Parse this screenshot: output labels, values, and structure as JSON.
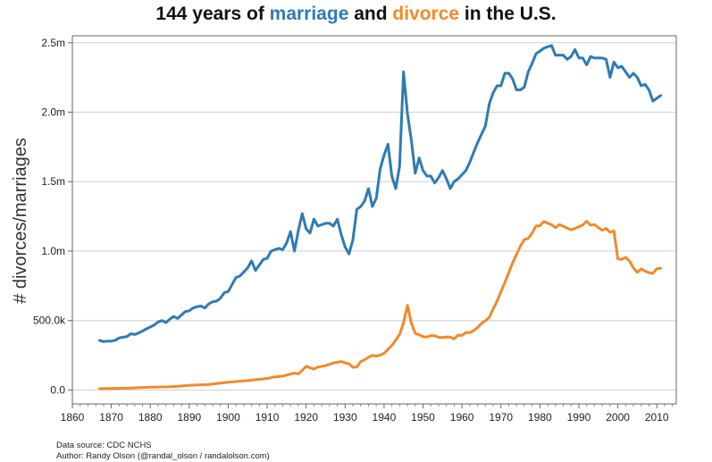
{
  "title": {
    "part1": "144 years of ",
    "part2": "marriage",
    "part3": " and ",
    "part4": "divorce",
    "part5": " in the U.S."
  },
  "source": {
    "line1": "Data source: CDC NCHS",
    "line2": "Author: Randy Olson (@randal_olson / randalolson.com)"
  },
  "chart_data": {
    "type": "line",
    "title": "144 years of marriage and divorce in the U.S.",
    "xlabel": "",
    "ylabel": "# divorces/marriages",
    "xlim": [
      1860,
      2015
    ],
    "ylim": [
      -100000,
      2550000
    ],
    "xticks": [
      1860,
      1870,
      1880,
      1890,
      1900,
      1910,
      1920,
      1930,
      1940,
      1950,
      1960,
      1970,
      1980,
      1990,
      2000,
      2010
    ],
    "yticks": [
      0,
      500000,
      1000000,
      1500000,
      2000000,
      2500000
    ],
    "ytick_labels": [
      "0.0",
      "500.0k",
      "1.0m",
      "1.5m",
      "2.0m",
      "2.5m"
    ],
    "grid": "horizontal",
    "legend": "none",
    "series": [
      {
        "name": "marriage",
        "color": "#2e7bb3",
        "points": [
          [
            1867,
            357000
          ],
          [
            1868,
            348000
          ],
          [
            1869,
            352000
          ],
          [
            1870,
            352000
          ],
          [
            1871,
            358000
          ],
          [
            1872,
            375000
          ],
          [
            1873,
            380000
          ],
          [
            1874,
            385000
          ],
          [
            1875,
            405000
          ],
          [
            1876,
            400000
          ],
          [
            1877,
            410000
          ],
          [
            1878,
            425000
          ],
          [
            1879,
            440000
          ],
          [
            1880,
            453000
          ],
          [
            1881,
            468000
          ],
          [
            1882,
            490000
          ],
          [
            1883,
            500000
          ],
          [
            1884,
            485000
          ],
          [
            1885,
            510000
          ],
          [
            1886,
            530000
          ],
          [
            1887,
            515000
          ],
          [
            1888,
            540000
          ],
          [
            1889,
            565000
          ],
          [
            1890,
            570000
          ],
          [
            1891,
            590000
          ],
          [
            1892,
            600000
          ],
          [
            1893,
            605000
          ],
          [
            1894,
            590000
          ],
          [
            1895,
            620000
          ],
          [
            1896,
            635000
          ],
          [
            1897,
            640000
          ],
          [
            1898,
            660000
          ],
          [
            1899,
            700000
          ],
          [
            1900,
            709000
          ],
          [
            1901,
            760000
          ],
          [
            1902,
            810000
          ],
          [
            1903,
            820000
          ],
          [
            1904,
            850000
          ],
          [
            1905,
            880000
          ],
          [
            1906,
            930000
          ],
          [
            1907,
            860000
          ],
          [
            1908,
            900000
          ],
          [
            1909,
            940000
          ],
          [
            1910,
            948000
          ],
          [
            1911,
            1000000
          ],
          [
            1912,
            1010000
          ],
          [
            1913,
            1020000
          ],
          [
            1914,
            1010000
          ],
          [
            1915,
            1060000
          ],
          [
            1916,
            1140000
          ],
          [
            1917,
            1000000
          ],
          [
            1918,
            1150000
          ],
          [
            1919,
            1270000
          ],
          [
            1920,
            1160000
          ],
          [
            1921,
            1130000
          ],
          [
            1922,
            1230000
          ],
          [
            1923,
            1180000
          ],
          [
            1924,
            1190000
          ],
          [
            1925,
            1200000
          ],
          [
            1926,
            1200000
          ],
          [
            1927,
            1180000
          ],
          [
            1928,
            1230000
          ],
          [
            1929,
            1120000
          ],
          [
            1930,
            1030000
          ],
          [
            1931,
            980000
          ],
          [
            1932,
            1080000
          ],
          [
            1933,
            1300000
          ],
          [
            1934,
            1320000
          ],
          [
            1935,
            1360000
          ],
          [
            1936,
            1450000
          ],
          [
            1937,
            1320000
          ],
          [
            1938,
            1380000
          ],
          [
            1939,
            1590000
          ],
          [
            1940,
            1690000
          ],
          [
            1941,
            1770000
          ],
          [
            1942,
            1540000
          ],
          [
            1943,
            1450000
          ],
          [
            1944,
            1610000
          ],
          [
            1945,
            2290000
          ],
          [
            1946,
            1990000
          ],
          [
            1947,
            1800000
          ],
          [
            1948,
            1560000
          ],
          [
            1949,
            1670000
          ],
          [
            1950,
            1580000
          ],
          [
            1951,
            1540000
          ],
          [
            1952,
            1540000
          ],
          [
            1953,
            1490000
          ],
          [
            1954,
            1530000
          ],
          [
            1955,
            1580000
          ],
          [
            1956,
            1520000
          ],
          [
            1957,
            1450000
          ],
          [
            1958,
            1500000
          ],
          [
            1959,
            1520000
          ],
          [
            1960,
            1550000
          ],
          [
            1961,
            1580000
          ],
          [
            1962,
            1640000
          ],
          [
            1963,
            1710000
          ],
          [
            1964,
            1780000
          ],
          [
            1965,
            1840000
          ],
          [
            1966,
            1900000
          ],
          [
            1967,
            2060000
          ],
          [
            1968,
            2140000
          ],
          [
            1969,
            2190000
          ],
          [
            1970,
            2190000
          ],
          [
            1971,
            2280000
          ],
          [
            1972,
            2280000
          ],
          [
            1973,
            2240000
          ],
          [
            1974,
            2160000
          ],
          [
            1975,
            2160000
          ],
          [
            1976,
            2180000
          ],
          [
            1977,
            2290000
          ],
          [
            1978,
            2350000
          ],
          [
            1979,
            2420000
          ],
          [
            1980,
            2440000
          ],
          [
            1981,
            2460000
          ],
          [
            1982,
            2470000
          ],
          [
            1983,
            2480000
          ],
          [
            1984,
            2410000
          ],
          [
            1985,
            2410000
          ],
          [
            1986,
            2410000
          ],
          [
            1987,
            2380000
          ],
          [
            1988,
            2400000
          ],
          [
            1989,
            2450000
          ],
          [
            1990,
            2390000
          ],
          [
            1991,
            2390000
          ],
          [
            1992,
            2340000
          ],
          [
            1993,
            2400000
          ],
          [
            1994,
            2390000
          ],
          [
            1995,
            2390000
          ],
          [
            1996,
            2390000
          ],
          [
            1997,
            2380000
          ],
          [
            1998,
            2250000
          ],
          [
            1999,
            2360000
          ],
          [
            2000,
            2320000
          ],
          [
            2001,
            2330000
          ],
          [
            2002,
            2290000
          ],
          [
            2003,
            2250000
          ],
          [
            2004,
            2280000
          ],
          [
            2005,
            2250000
          ],
          [
            2006,
            2190000
          ],
          [
            2007,
            2200000
          ],
          [
            2008,
            2160000
          ],
          [
            2009,
            2080000
          ],
          [
            2010,
            2100000
          ],
          [
            2011,
            2120000
          ]
        ]
      },
      {
        "name": "divorce",
        "color": "#f08a2a",
        "points": [
          [
            1867,
            10000
          ],
          [
            1870,
            11000
          ],
          [
            1875,
            14000
          ],
          [
            1880,
            20000
          ],
          [
            1885,
            23000
          ],
          [
            1890,
            33000
          ],
          [
            1895,
            40000
          ],
          [
            1900,
            56000
          ],
          [
            1905,
            68000
          ],
          [
            1910,
            83000
          ],
          [
            1912,
            95000
          ],
          [
            1914,
            100000
          ],
          [
            1916,
            115000
          ],
          [
            1917,
            121000
          ],
          [
            1918,
            116000
          ],
          [
            1919,
            141000
          ],
          [
            1920,
            171000
          ],
          [
            1921,
            160000
          ],
          [
            1922,
            150000
          ],
          [
            1923,
            165000
          ],
          [
            1924,
            170000
          ],
          [
            1925,
            175000
          ],
          [
            1926,
            185000
          ],
          [
            1927,
            195000
          ],
          [
            1928,
            200000
          ],
          [
            1929,
            205000
          ],
          [
            1930,
            196000
          ],
          [
            1931,
            188000
          ],
          [
            1932,
            164000
          ],
          [
            1933,
            165000
          ],
          [
            1934,
            204000
          ],
          [
            1935,
            218000
          ],
          [
            1936,
            236000
          ],
          [
            1937,
            249000
          ],
          [
            1938,
            244000
          ],
          [
            1939,
            251000
          ],
          [
            1940,
            264000
          ],
          [
            1941,
            293000
          ],
          [
            1942,
            321000
          ],
          [
            1943,
            359000
          ],
          [
            1944,
            400000
          ],
          [
            1945,
            485000
          ],
          [
            1946,
            610000
          ],
          [
            1947,
            483000
          ],
          [
            1948,
            408000
          ],
          [
            1949,
            397000
          ],
          [
            1950,
            385000
          ],
          [
            1951,
            381000
          ],
          [
            1952,
            392000
          ],
          [
            1953,
            390000
          ],
          [
            1954,
            379000
          ],
          [
            1955,
            377000
          ],
          [
            1956,
            382000
          ],
          [
            1957,
            381000
          ],
          [
            1958,
            368000
          ],
          [
            1959,
            395000
          ],
          [
            1960,
            393000
          ],
          [
            1961,
            414000
          ],
          [
            1962,
            413000
          ],
          [
            1963,
            428000
          ],
          [
            1964,
            450000
          ],
          [
            1965,
            479000
          ],
          [
            1966,
            499000
          ],
          [
            1967,
            523000
          ],
          [
            1968,
            584000
          ],
          [
            1969,
            639000
          ],
          [
            1970,
            708000
          ],
          [
            1971,
            773000
          ],
          [
            1972,
            845000
          ],
          [
            1973,
            915000
          ],
          [
            1974,
            977000
          ],
          [
            1975,
            1036000
          ],
          [
            1976,
            1083000
          ],
          [
            1977,
            1091000
          ],
          [
            1978,
            1130000
          ],
          [
            1979,
            1181000
          ],
          [
            1980,
            1182000
          ],
          [
            1981,
            1213000
          ],
          [
            1982,
            1200000
          ],
          [
            1983,
            1190000
          ],
          [
            1984,
            1169000
          ],
          [
            1985,
            1190000
          ],
          [
            1986,
            1178000
          ],
          [
            1987,
            1166000
          ],
          [
            1988,
            1153000
          ],
          [
            1989,
            1163000
          ],
          [
            1990,
            1175000
          ],
          [
            1991,
            1187000
          ],
          [
            1992,
            1215000
          ],
          [
            1993,
            1187000
          ],
          [
            1994,
            1191000
          ],
          [
            1995,
            1169000
          ],
          [
            1996,
            1150000
          ],
          [
            1997,
            1163000
          ],
          [
            1998,
            1135000
          ],
          [
            1999,
            1145000
          ],
          [
            2000,
            944000
          ],
          [
            2001,
            940000
          ],
          [
            2002,
            955000
          ],
          [
            2003,
            927000
          ],
          [
            2004,
            879000
          ],
          [
            2005,
            847000
          ],
          [
            2006,
            872000
          ],
          [
            2007,
            856000
          ],
          [
            2008,
            844000
          ],
          [
            2009,
            840000
          ],
          [
            2010,
            872000
          ],
          [
            2011,
            877000
          ]
        ]
      }
    ]
  }
}
